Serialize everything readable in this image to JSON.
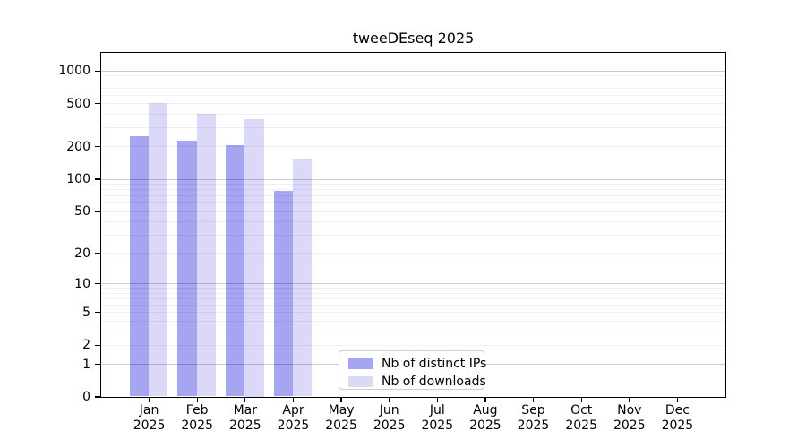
{
  "chart_data": {
    "type": "bar",
    "title": "tweeDEseq 2025",
    "x_labels": [
      {
        "month": "Jan",
        "year": "2025"
      },
      {
        "month": "Feb",
        "year": "2025"
      },
      {
        "month": "Mar",
        "year": "2025"
      },
      {
        "month": "Apr",
        "year": "2025"
      },
      {
        "month": "May",
        "year": "2025"
      },
      {
        "month": "Jun",
        "year": "2025"
      },
      {
        "month": "Jul",
        "year": "2025"
      },
      {
        "month": "Aug",
        "year": "2025"
      },
      {
        "month": "Sep",
        "year": "2025"
      },
      {
        "month": "Oct",
        "year": "2025"
      },
      {
        "month": "Nov",
        "year": "2025"
      },
      {
        "month": "Dec",
        "year": "2025"
      }
    ],
    "series": [
      {
        "name": "Nb of distinct IPs",
        "color": "#a5a5f2",
        "values": [
          250,
          225,
          204,
          77,
          0,
          0,
          0,
          0,
          0,
          0,
          0,
          0
        ]
      },
      {
        "name": "Nb of downloads",
        "color": "#dadaf8",
        "values": [
          500,
          400,
          360,
          155,
          0,
          0,
          0,
          0,
          0,
          0,
          0,
          0
        ]
      }
    ],
    "yscale": "log1p",
    "yticks": [
      0,
      1,
      2,
      5,
      10,
      20,
      50,
      100,
      200,
      500,
      1000
    ],
    "ylim": [
      0,
      1470
    ],
    "xlabel": "",
    "ylabel": "",
    "grid": "horizontal",
    "legend_position": "lower-center-inside"
  }
}
